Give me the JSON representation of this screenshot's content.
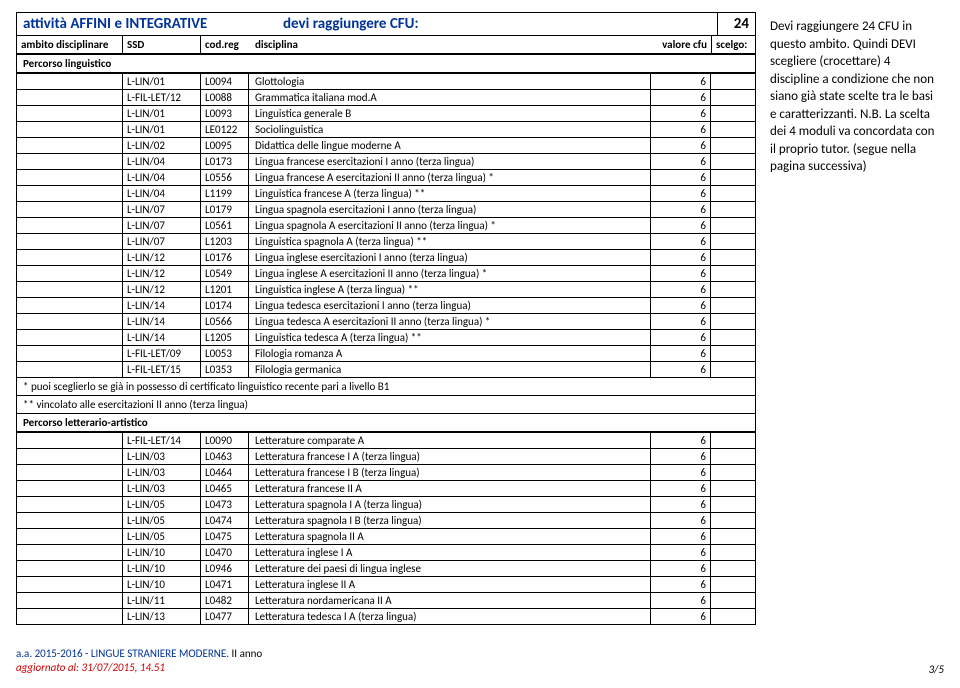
{
  "header": {
    "title_left": "attività AFFINI e INTEGRATIVE",
    "title_right": "devi raggiungere CFU:",
    "cfu_total": "24",
    "cols": {
      "ambito": "ambito disciplinare",
      "ssd": "SSD",
      "cod": "cod.reg",
      "disc": "disciplina",
      "cfu": "valore cfu",
      "scelgo": "scelgo:"
    }
  },
  "sections": [
    {
      "title": "Percorso linguistico",
      "rows": [
        {
          "ssd": "L-LIN/01",
          "cod": "L0094",
          "disc": "Glottologia",
          "cfu": "6"
        },
        {
          "ssd": "L-FIL-LET/12",
          "cod": "L0088",
          "disc": "Grammatica italiana mod.A",
          "cfu": "6"
        },
        {
          "ssd": "L-LIN/01",
          "cod": "L0093",
          "disc": "Linguistica generale B",
          "cfu": "6"
        },
        {
          "ssd": "L-LIN/01",
          "cod": "LE0122",
          "disc": "Sociolinguistica",
          "cfu": "6"
        },
        {
          "ssd": "L-LIN/02",
          "cod": "L0095",
          "disc": "Didattica delle lingue moderne A",
          "cfu": "6"
        },
        {
          "ssd": "L-LIN/04",
          "cod": "L0173",
          "disc": "Lingua francese esercitazioni I anno (terza lingua)",
          "cfu": "6"
        },
        {
          "ssd": "L-LIN/04",
          "cod": "L0556",
          "disc": "Lingua francese A esercitazioni II anno (terza lingua) *",
          "cfu": "6"
        },
        {
          "ssd": "L-LIN/04",
          "cod": "L1199",
          "disc": "Linguistica francese A (terza lingua) **",
          "cfu": "6"
        },
        {
          "ssd": "L-LIN/07",
          "cod": "L0179",
          "disc": "Lingua spagnola esercitazioni I anno (terza lingua)",
          "cfu": "6"
        },
        {
          "ssd": "L-LIN/07",
          "cod": "L0561",
          "disc": "Lingua spagnola A esercitazioni II anno (terza lingua) *",
          "cfu": "6"
        },
        {
          "ssd": "L-LIN/07",
          "cod": "L1203",
          "disc": "Linguistica spagnola A (terza lingua) **",
          "cfu": "6"
        },
        {
          "ssd": "L-LIN/12",
          "cod": "L0176",
          "disc": "Lingua inglese esercitazioni I anno (terza lingua)",
          "cfu": "6"
        },
        {
          "ssd": "L-LIN/12",
          "cod": "L0549",
          "disc": "Lingua inglese A esercitazioni II anno (terza lingua) *",
          "cfu": "6"
        },
        {
          "ssd": "L-LIN/12",
          "cod": "L1201",
          "disc": "Linguistica inglese A (terza lingua) **",
          "cfu": "6"
        },
        {
          "ssd": "L-LIN/14",
          "cod": "L0174",
          "disc": "Lingua tedesca esercitazioni I anno (terza lingua)",
          "cfu": "6"
        },
        {
          "ssd": "L-LIN/14",
          "cod": "L0566",
          "disc": "Lingua tedesca A esercitazioni II anno (terza lingua) *",
          "cfu": "6"
        },
        {
          "ssd": "L-LIN/14",
          "cod": "L1205",
          "disc": "Linguistica tedesca A (terza lingua) **",
          "cfu": "6"
        },
        {
          "ssd": "L-FIL-LET/09",
          "cod": "L0053",
          "disc": "Filologia romanza A",
          "cfu": "6"
        },
        {
          "ssd": "L-FIL-LET/15",
          "cod": "L0353",
          "disc": "Filologia germanica",
          "cfu": "6"
        }
      ],
      "notes": [
        "* puoi sceglierlo se già in possesso di certificato linguistico recente pari a livello B1",
        "** vincolato alle esercitazioni II anno (terza lingua)"
      ]
    },
    {
      "title": "Percorso letterario-artistico",
      "rows": [
        {
          "ssd": "L-FIL-LET/14",
          "cod": "L0090",
          "disc": "Letterature comparate A",
          "cfu": "6"
        },
        {
          "ssd": "L-LIN/03",
          "cod": "L0463",
          "disc": "Letteratura francese I A (terza lingua)",
          "cfu": "6"
        },
        {
          "ssd": "L-LIN/03",
          "cod": "L0464",
          "disc": "Letteratura francese I B (terza lingua)",
          "cfu": "6"
        },
        {
          "ssd": "L-LIN/03",
          "cod": "L0465",
          "disc": "Letteratura francese II A",
          "cfu": "6"
        },
        {
          "ssd": "L-LIN/05",
          "cod": "L0473",
          "disc": "Letteratura spagnola I A (terza lingua)",
          "cfu": "6"
        },
        {
          "ssd": "L-LIN/05",
          "cod": "L0474",
          "disc": "Letteratura spagnola I B (terza lingua)",
          "cfu": "6"
        },
        {
          "ssd": "L-LIN/05",
          "cod": "L0475",
          "disc": "Letteratura spagnola II A",
          "cfu": "6"
        },
        {
          "ssd": "L-LIN/10",
          "cod": "L0470",
          "disc": "Letteratura inglese I A",
          "cfu": "6"
        },
        {
          "ssd": "L-LIN/10",
          "cod": "L0946",
          "disc": "Letterature dei paesi di lingua inglese",
          "cfu": "6"
        },
        {
          "ssd": "L-LIN/10",
          "cod": "L0471",
          "disc": "Letteratura inglese II A",
          "cfu": "6"
        },
        {
          "ssd": "L-LIN/11",
          "cod": "L0482",
          "disc": "Letteratura nordamericana II A",
          "cfu": "6"
        },
        {
          "ssd": "L-LIN/13",
          "cod": "L0477",
          "disc": "Letteratura tedesca I A (terza lingua)",
          "cfu": "6"
        }
      ],
      "notes": []
    }
  ],
  "side_note": "Devi raggiungere 24 CFU in questo ambito. Quindi DEVI scegliere (crocettare) 4 discipline a condizione che non siano già state scelte tra le basi e caratterizzanti. N.B. La scelta dei 4 moduli va concordata con il proprio tutor. (segue nella pagina successiva)",
  "footer": {
    "line1a": "a.a. 2015-2016 - LINGUE STRANIERE MODERNE.",
    "line1b": "  II anno",
    "line2": "aggiornato al: 31/07/2015, 14.51",
    "page": "3/5"
  }
}
